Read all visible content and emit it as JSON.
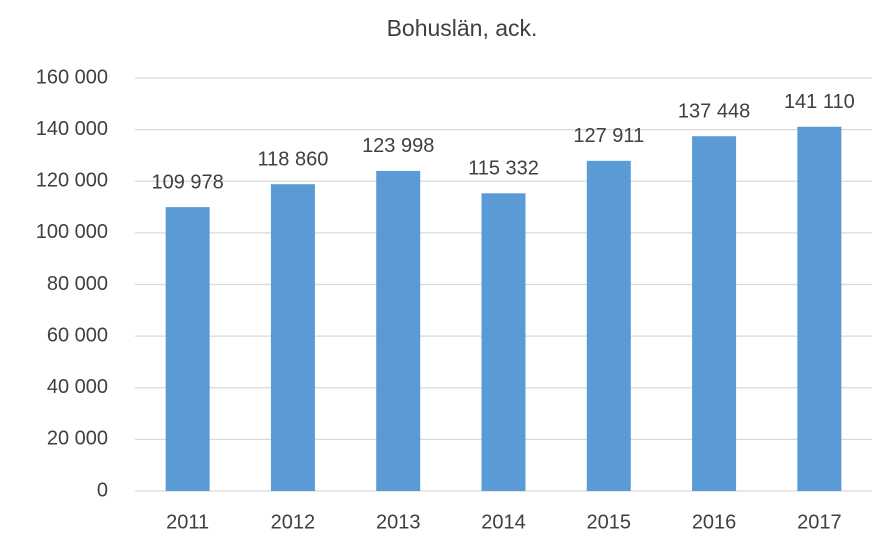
{
  "chart_data": {
    "type": "bar",
    "title": "Bohuslän, ack.",
    "categories": [
      "2011",
      "2012",
      "2013",
      "2014",
      "2015",
      "2016",
      "2017"
    ],
    "values": [
      109978,
      118860,
      123998,
      115332,
      127911,
      137448,
      141110
    ],
    "value_labels": [
      "109 978",
      "118 860",
      "123 998",
      "115 332",
      "127 911",
      "137 448",
      "141 110"
    ],
    "color": "#5b9bd5",
    "ylim": [
      0,
      160000
    ],
    "yticks": [
      0,
      {
        "value": 20000,
        "label": "20 000"
      },
      {
        "value": 40000,
        "label": "40 000"
      },
      {
        "value": 60000,
        "label": "60 000"
      },
      {
        "value": 80000,
        "label": "80 000"
      },
      {
        "value": 100000,
        "label": "100 000"
      },
      {
        "value": 120000,
        "label": "120 000"
      },
      {
        "value": 140000,
        "label": "140 000"
      },
      {
        "value": 160000,
        "label": "160 000"
      }
    ],
    "grid": true
  }
}
